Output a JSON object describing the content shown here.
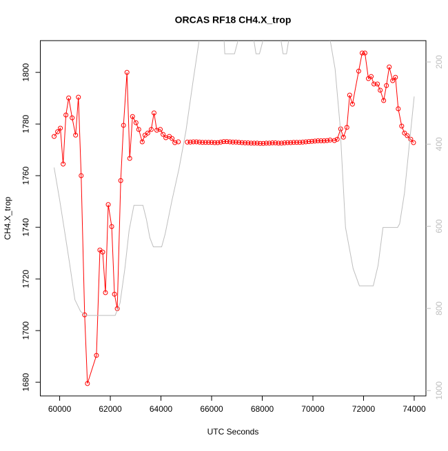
{
  "chart_data": {
    "type": "line",
    "title": "ORCAS RF18 CH4.X_trop",
    "xlabel": "UTC Seconds",
    "ylabel": "CH4.X_trop",
    "xlim": [
      59236,
      74464
    ],
    "xticks": [
      60000,
      62000,
      64000,
      66000,
      68000,
      70000,
      72000,
      74000
    ],
    "ylim": [
      1674.7,
      1812.3
    ],
    "yticks": [
      1680,
      1700,
      1720,
      1740,
      1760,
      1780,
      1800
    ],
    "y2lim": [
      1013,
      148
    ],
    "y2ticks": [
      200,
      400,
      600,
      800,
      1000
    ],
    "y2color": "#bebebe",
    "series": [
      {
        "color": "#ff0000",
        "marker": "circle",
        "x": [
          59781,
          59918,
          60027,
          60137,
          60247,
          60356,
          60493,
          60630,
          60740,
          60849,
          60986,
          61096,
          61452,
          61589,
          61699,
          61808,
          61918,
          62055,
          62164,
          62274,
          62411,
          62521,
          62658,
          62767,
          62877,
          63014,
          63123,
          63260,
          63370,
          63479,
          63616,
          63726,
          63836,
          63973,
          64082,
          64192,
          64329,
          64438,
          64548,
          64685,
          64860,
          65040,
          65160,
          65280,
          65400,
          65520,
          65640,
          65760,
          65880,
          66000,
          66120,
          66240,
          66360,
          66480,
          66600,
          66720,
          66840,
          66960,
          67080,
          67200,
          67320,
          67440,
          67560,
          67680,
          67800,
          67920,
          68040,
          68160,
          68280,
          68400,
          68520,
          68640,
          68760,
          68880,
          69000,
          69120,
          69240,
          69360,
          69480,
          69600,
          69720,
          69840,
          69960,
          70080,
          70200,
          70320,
          70440,
          70560,
          70680,
          70849,
          70959,
          71096,
          71205,
          71342,
          71452,
          71562,
          71808,
          71945,
          72055,
          72192,
          72301,
          72411,
          72548,
          72658,
          72795,
          72904,
          73014,
          73151,
          73260,
          73370,
          73507,
          73616,
          73726,
          73863,
          73973
        ],
        "values": [
          1775.2,
          1777,
          1778.4,
          1764.5,
          1783.5,
          1790.1,
          1782.4,
          1775.7,
          1790.4,
          1760,
          1706.1,
          1679.5,
          1690.4,
          1731.2,
          1730.4,
          1714.7,
          1748.8,
          1740.3,
          1714.1,
          1708.5,
          1758.1,
          1779.5,
          1800,
          1766.7,
          1782.9,
          1780.5,
          1777.9,
          1773.1,
          1775.7,
          1776.5,
          1777.9,
          1784.3,
          1777.6,
          1777.9,
          1776,
          1774.7,
          1775.2,
          1774.4,
          1772.8,
          1773.1,
          null,
          1773.0,
          1773.0,
          1773.1,
          1773.1,
          1773.0,
          1772.9,
          1772.9,
          1772.9,
          1772.9,
          1772.8,
          1772.8,
          1773.0,
          1773.2,
          1773.2,
          1773.1,
          1773.0,
          1773.0,
          1772.9,
          1772.8,
          1772.7,
          1772.7,
          1772.6,
          1772.6,
          1772.6,
          1772.5,
          1772.5,
          1772.6,
          1772.6,
          1772.7,
          1772.7,
          1772.6,
          1772.6,
          1772.7,
          1772.8,
          1772.8,
          1772.9,
          1772.9,
          1772.9,
          1773.0,
          1773.1,
          1773.2,
          1773.3,
          1773.4,
          1773.5,
          1773.5,
          1773.5,
          1773.6,
          1773.8,
          1773.6,
          1774.1,
          1778.1,
          1774.9,
          1778.7,
          1791.2,
          1787.7,
          1800.5,
          1807.5,
          1807.5,
          1797.6,
          1798.4,
          1795.5,
          1795.5,
          1793.1,
          1789.1,
          1794.9,
          1802.1,
          1796.8,
          1798.1,
          1785.9,
          1779.2,
          1776.5,
          1775.5,
          1774.1,
          1772.8
        ]
      },
      {
        "color": "#bebebe",
        "axis": "y2",
        "x": [
          59781,
          60000,
          60192,
          60384,
          60603,
          60822,
          61014,
          62192,
          62384,
          62575,
          62740,
          62932,
          63069,
          63288,
          63425,
          63562,
          63699,
          64027,
          64164,
          64438,
          64712,
          64986,
          65260,
          65507,
          66000,
          66493,
          66521,
          66904,
          67041,
          67300,
          67671,
          67753,
          67890,
          68027,
          68400,
          68740,
          68822,
          68959,
          69041,
          69500,
          70685,
          70877,
          71068,
          71288,
          71589,
          71836,
          72384,
          72575,
          72767,
          73342,
          73425,
          73616,
          73808,
          74000
        ],
        "values": [
          457,
          536,
          611,
          687,
          779,
          807,
          817,
          817,
          787,
          703,
          611,
          549,
          549,
          549,
          583,
          628,
          650,
          650,
          619,
          536,
          460,
          368,
          250,
          148,
          null,
          148,
          180,
          180,
          148,
          null,
          148,
          180,
          180,
          148,
          null,
          148,
          180,
          180,
          148,
          null,
          148,
          217,
          351,
          603,
          703,
          745,
          745,
          695,
          603,
          603,
          594,
          519,
          401,
          284
        ]
      }
    ]
  }
}
